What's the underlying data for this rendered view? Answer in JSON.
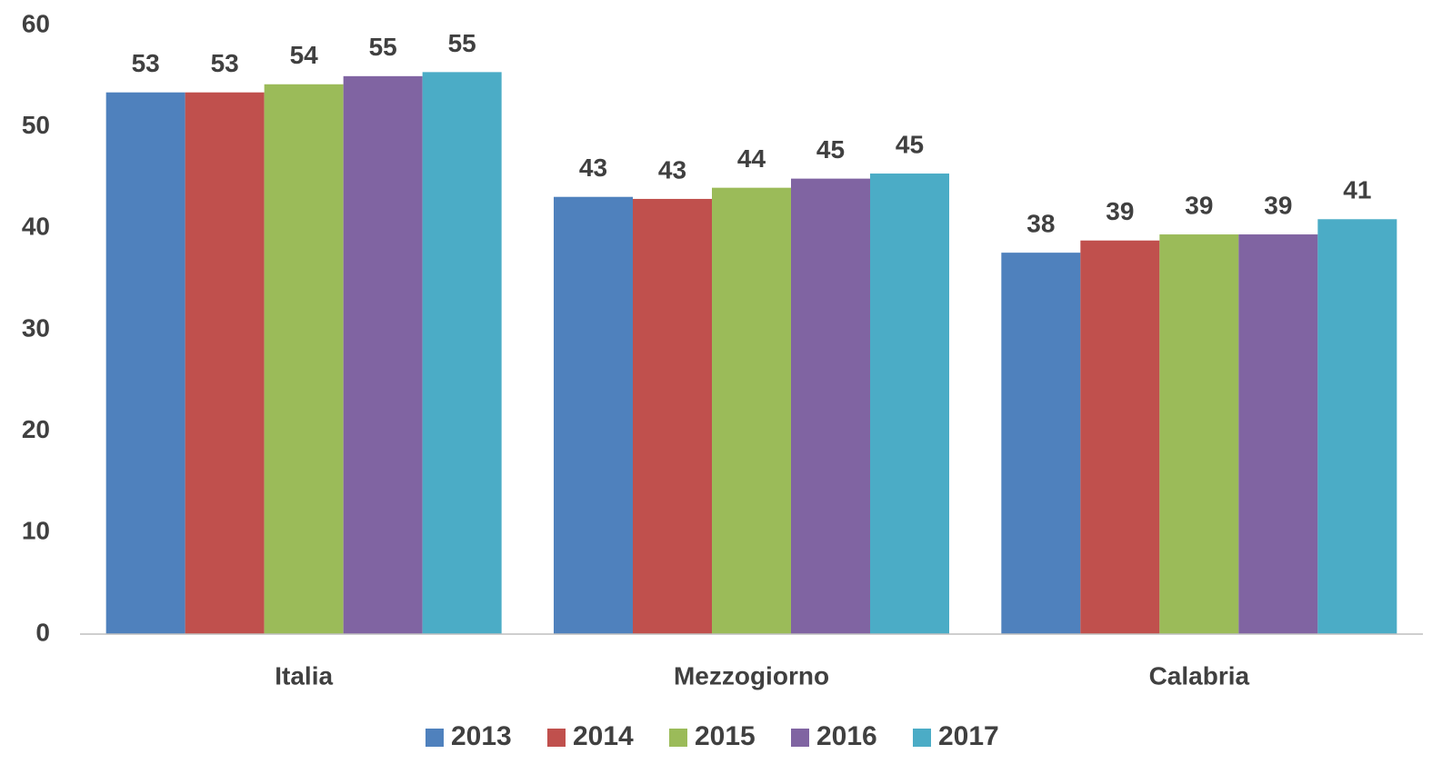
{
  "chart_data": {
    "type": "bar",
    "categories": [
      "Italia",
      "Mezzogiorno",
      "Calabria"
    ],
    "series": [
      {
        "name": "2013",
        "color": "#4f81bd",
        "values": [
          53.4,
          43.1,
          37.6
        ],
        "value_labels": [
          "53",
          "43",
          "38"
        ]
      },
      {
        "name": "2014",
        "color": "#c0504d",
        "values": [
          53.4,
          42.9,
          38.8
        ],
        "value_labels": [
          "53",
          "43",
          "39"
        ]
      },
      {
        "name": "2015",
        "color": "#9bbb59",
        "values": [
          54.2,
          44.0,
          39.4
        ],
        "value_labels": [
          "54",
          "44",
          "39"
        ]
      },
      {
        "name": "2016",
        "color": "#8064a2",
        "values": [
          55.0,
          44.9,
          39.4
        ],
        "value_labels": [
          "55",
          "45",
          "39"
        ]
      },
      {
        "name": "2017",
        "color": "#4bacc6",
        "values": [
          55.4,
          45.4,
          40.9
        ],
        "value_labels": [
          "55",
          "45",
          "41"
        ]
      }
    ],
    "ylim": [
      0,
      60
    ],
    "yticks": [
      0,
      10,
      20,
      30,
      40,
      50,
      60
    ],
    "grid": false,
    "legend": "bottom"
  }
}
